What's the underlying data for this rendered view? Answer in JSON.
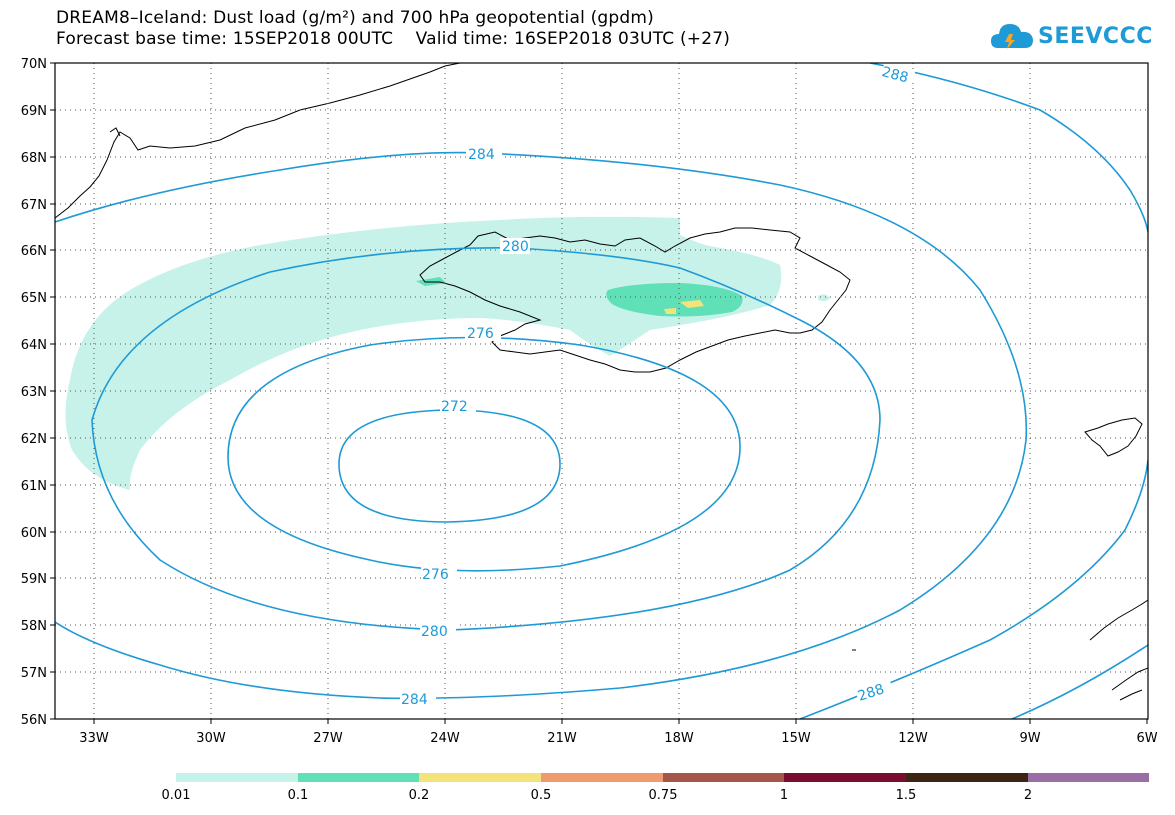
{
  "title": {
    "line1": "DREAM8–Iceland: Dust load (g/m²) and 700 hPa geopotential (gpdm)",
    "line2": "Forecast base time: 15SEP2018 00UTC    Valid time: 16SEP2018 03UTC (+27)"
  },
  "logo": {
    "text": "SEEVCCC"
  },
  "map": {
    "lat_labels": [
      "70N",
      "69N",
      "68N",
      "67N",
      "66N",
      "65N",
      "64N",
      "63N",
      "62N",
      "61N",
      "60N",
      "59N",
      "58N",
      "57N",
      "56N"
    ],
    "lon_labels": [
      "33W",
      "30W",
      "27W",
      "24W",
      "21W",
      "18W",
      "15W",
      "12W",
      "9W",
      "6W"
    ],
    "contour_color": "#1e9ad6",
    "contour_labels": [
      "288",
      "284",
      "280",
      "276",
      "272",
      "276",
      "280",
      "284",
      "288"
    ]
  },
  "legend": {
    "labels": [
      "0.01",
      "0.1",
      "0.2",
      "0.5",
      "0.75",
      "1",
      "1.5",
      "2"
    ],
    "colors": [
      "#c6f2ea",
      "#5fe0b6",
      "#f3e37a",
      "#ef9a70",
      "#a5564a",
      "#7a0c2e",
      "#3c2514",
      "#9a6ea5"
    ]
  }
}
